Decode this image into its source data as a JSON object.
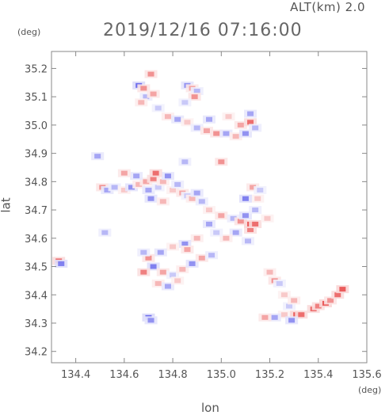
{
  "header": {
    "alt_label": "ALT(km) 2.0",
    "time_label": "2019/12/16 07:16:00",
    "y_unit": "(deg)",
    "x_unit": "(deg)"
  },
  "chart_data": {
    "type": "heatmap",
    "xlabel": "lon",
    "ylabel": "lat",
    "xlim": [
      134.3,
      135.6
    ],
    "ylim": [
      34.16,
      35.26
    ],
    "x_ticks": [
      134.4,
      134.6,
      134.8,
      135.0,
      135.2,
      135.4,
      135.6
    ],
    "y_ticks": [
      34.2,
      34.3,
      34.4,
      34.5,
      34.6,
      34.7,
      34.8,
      34.9,
      35.0,
      35.1,
      35.2
    ],
    "x_tick_labels": [
      "134.4",
      "134.6",
      "134.8",
      "135.0",
      "135.2",
      "135.4",
      "135.6"
    ],
    "y_tick_labels": [
      "34.2",
      "34.3",
      "34.4",
      "34.5",
      "34.6",
      "34.7",
      "34.8",
      "34.9",
      "35.0",
      "35.1",
      "35.2"
    ],
    "grid": false,
    "colors": {
      "positive": "#e84a4a",
      "negative": "#4a4ae8",
      "neutral": "#ffffff"
    },
    "cells": [
      {
        "lon": 134.33,
        "lat": 34.52,
        "v": 0.8
      },
      {
        "lon": 134.34,
        "lat": 34.51,
        "v": -0.7
      },
      {
        "lon": 134.51,
        "lat": 34.78,
        "v": 0.6
      },
      {
        "lon": 134.53,
        "lat": 34.77,
        "v": -0.5
      },
      {
        "lon": 134.56,
        "lat": 34.78,
        "v": -0.4
      },
      {
        "lon": 134.6,
        "lat": 34.77,
        "v": 0.3
      },
      {
        "lon": 134.63,
        "lat": 34.78,
        "v": -0.6
      },
      {
        "lon": 134.66,
        "lat": 34.79,
        "v": 0.4
      },
      {
        "lon": 134.69,
        "lat": 34.8,
        "v": 0.5
      },
      {
        "lon": 134.7,
        "lat": 34.77,
        "v": -0.5
      },
      {
        "lon": 134.72,
        "lat": 34.81,
        "v": 0.7
      },
      {
        "lon": 134.74,
        "lat": 34.78,
        "v": -0.3
      },
      {
        "lon": 134.76,
        "lat": 34.8,
        "v": 0.4
      },
      {
        "lon": 134.78,
        "lat": 34.82,
        "v": -0.6
      },
      {
        "lon": 134.8,
        "lat": 34.77,
        "v": 0.3
      },
      {
        "lon": 134.82,
        "lat": 34.79,
        "v": -0.4
      },
      {
        "lon": 134.84,
        "lat": 34.76,
        "v": 0.5
      },
      {
        "lon": 134.73,
        "lat": 34.83,
        "v": 0.8
      },
      {
        "lon": 134.71,
        "lat": 34.74,
        "v": -0.6
      },
      {
        "lon": 134.76,
        "lat": 34.73,
        "v": 0.4
      },
      {
        "lon": 134.86,
        "lat": 34.75,
        "v": -0.3
      },
      {
        "lon": 134.88,
        "lat": 34.74,
        "v": 0.4
      },
      {
        "lon": 134.9,
        "lat": 34.76,
        "v": -0.5
      },
      {
        "lon": 134.65,
        "lat": 34.82,
        "v": -0.5
      },
      {
        "lon": 134.92,
        "lat": 34.73,
        "v": -0.4
      },
      {
        "lon": 134.95,
        "lat": 34.7,
        "v": 0.3
      },
      {
        "lon": 135.0,
        "lat": 34.68,
        "v": 0.5
      },
      {
        "lon": 135.05,
        "lat": 34.67,
        "v": -0.4
      },
      {
        "lon": 135.08,
        "lat": 34.66,
        "v": 0.6
      },
      {
        "lon": 135.1,
        "lat": 34.68,
        "v": -0.6
      },
      {
        "lon": 135.06,
        "lat": 34.62,
        "v": -0.5
      },
      {
        "lon": 135.02,
        "lat": 34.6,
        "v": 0.4
      },
      {
        "lon": 134.98,
        "lat": 34.62,
        "v": -0.3
      },
      {
        "lon": 135.12,
        "lat": 34.63,
        "v": 0.7
      },
      {
        "lon": 135.14,
        "lat": 34.7,
        "v": -0.4
      },
      {
        "lon": 135.15,
        "lat": 34.74,
        "v": 0.3
      },
      {
        "lon": 135.13,
        "lat": 34.78,
        "v": 0.5
      },
      {
        "lon": 135.16,
        "lat": 34.77,
        "v": -0.3
      },
      {
        "lon": 135.1,
        "lat": 34.74,
        "v": -0.7
      },
      {
        "lon": 135.12,
        "lat": 34.65,
        "v": 0.9
      },
      {
        "lon": 135.14,
        "lat": 34.65,
        "v": 0.8
      },
      {
        "lon": 134.95,
        "lat": 34.65,
        "v": -0.5
      },
      {
        "lon": 134.9,
        "lat": 34.6,
        "v": 0.4
      },
      {
        "lon": 134.85,
        "lat": 34.58,
        "v": -0.6
      },
      {
        "lon": 134.8,
        "lat": 34.57,
        "v": 0.3
      },
      {
        "lon": 134.75,
        "lat": 34.55,
        "v": -0.5
      },
      {
        "lon": 134.7,
        "lat": 34.53,
        "v": 0.6
      },
      {
        "lon": 134.68,
        "lat": 34.55,
        "v": -0.4
      },
      {
        "lon": 134.72,
        "lat": 34.5,
        "v": -0.7
      },
      {
        "lon": 134.76,
        "lat": 34.48,
        "v": 0.5
      },
      {
        "lon": 134.8,
        "lat": 34.47,
        "v": -0.3
      },
      {
        "lon": 134.84,
        "lat": 34.49,
        "v": 0.4
      },
      {
        "lon": 134.88,
        "lat": 34.51,
        "v": -0.6
      },
      {
        "lon": 134.92,
        "lat": 34.53,
        "v": 0.5
      },
      {
        "lon": 134.96,
        "lat": 34.54,
        "v": -0.4
      },
      {
        "lon": 134.74,
        "lat": 34.44,
        "v": 0.4
      },
      {
        "lon": 134.78,
        "lat": 34.43,
        "v": -0.5
      },
      {
        "lon": 134.82,
        "lat": 34.45,
        "v": 0.3
      },
      {
        "lon": 134.68,
        "lat": 34.48,
        "v": 0.7
      },
      {
        "lon": 134.86,
        "lat": 34.56,
        "v": 0.5
      },
      {
        "lon": 134.66,
        "lat": 35.14,
        "v": -0.8
      },
      {
        "lon": 134.68,
        "lat": 35.13,
        "v": 0.6
      },
      {
        "lon": 134.69,
        "lat": 35.1,
        "v": -0.4
      },
      {
        "lon": 134.72,
        "lat": 35.11,
        "v": 0.5
      },
      {
        "lon": 134.67,
        "lat": 35.08,
        "v": 0.4
      },
      {
        "lon": 134.71,
        "lat": 35.18,
        "v": 0.6
      },
      {
        "lon": 134.86,
        "lat": 35.14,
        "v": -0.6
      },
      {
        "lon": 134.88,
        "lat": 35.13,
        "v": 0.5
      },
      {
        "lon": 134.9,
        "lat": 35.12,
        "v": -0.4
      },
      {
        "lon": 134.89,
        "lat": 35.1,
        "v": 0.6
      },
      {
        "lon": 134.85,
        "lat": 35.08,
        "v": -0.3
      },
      {
        "lon": 134.78,
        "lat": 35.03,
        "v": 0.4
      },
      {
        "lon": 134.82,
        "lat": 35.02,
        "v": -0.5
      },
      {
        "lon": 134.86,
        "lat": 35.01,
        "v": 0.3
      },
      {
        "lon": 134.9,
        "lat": 34.99,
        "v": -0.4
      },
      {
        "lon": 134.94,
        "lat": 34.98,
        "v": 0.5
      },
      {
        "lon": 134.98,
        "lat": 34.97,
        "v": 0.6
      },
      {
        "lon": 135.02,
        "lat": 34.97,
        "v": -0.5
      },
      {
        "lon": 135.06,
        "lat": 34.96,
        "v": 0.4
      },
      {
        "lon": 135.1,
        "lat": 34.97,
        "v": -0.6
      },
      {
        "lon": 135.08,
        "lat": 35.0,
        "v": 0.5
      },
      {
        "lon": 135.12,
        "lat": 35.01,
        "v": 0.8
      },
      {
        "lon": 135.14,
        "lat": 34.99,
        "v": -0.4
      },
      {
        "lon": 135.12,
        "lat": 35.04,
        "v": -0.5
      },
      {
        "lon": 135.03,
        "lat": 35.03,
        "v": 0.3
      },
      {
        "lon": 134.74,
        "lat": 35.06,
        "v": -0.3
      },
      {
        "lon": 134.95,
        "lat": 35.02,
        "v": -0.5
      },
      {
        "lon": 134.6,
        "lat": 34.83,
        "v": 0.5
      },
      {
        "lon": 135.0,
        "lat": 34.87,
        "v": 0.6
      },
      {
        "lon": 134.85,
        "lat": 34.87,
        "v": -0.4
      },
      {
        "lon": 135.22,
        "lat": 34.45,
        "v": 0.6
      },
      {
        "lon": 135.24,
        "lat": 34.44,
        "v": -0.3
      },
      {
        "lon": 135.26,
        "lat": 34.4,
        "v": 0.3
      },
      {
        "lon": 135.28,
        "lat": 34.36,
        "v": -0.3
      },
      {
        "lon": 135.3,
        "lat": 34.38,
        "v": 0.4
      },
      {
        "lon": 135.26,
        "lat": 34.33,
        "v": 0.3
      },
      {
        "lon": 135.22,
        "lat": 34.32,
        "v": -0.5
      },
      {
        "lon": 135.18,
        "lat": 34.32,
        "v": 0.5
      },
      {
        "lon": 135.31,
        "lat": 34.33,
        "v": 0.9
      },
      {
        "lon": 135.33,
        "lat": 34.33,
        "v": 0.8
      },
      {
        "lon": 135.29,
        "lat": 34.31,
        "v": -0.6
      },
      {
        "lon": 135.38,
        "lat": 34.35,
        "v": 0.8
      },
      {
        "lon": 135.4,
        "lat": 34.36,
        "v": 0.7
      },
      {
        "lon": 135.43,
        "lat": 34.37,
        "v": 0.9
      },
      {
        "lon": 135.45,
        "lat": 34.38,
        "v": 0.6
      },
      {
        "lon": 135.48,
        "lat": 34.4,
        "v": 0.8
      },
      {
        "lon": 135.5,
        "lat": 34.42,
        "v": 0.9
      },
      {
        "lon": 134.7,
        "lat": 34.32,
        "v": -0.8
      },
      {
        "lon": 134.71,
        "lat": 34.31,
        "v": -0.6
      },
      {
        "lon": 134.52,
        "lat": 34.62,
        "v": -0.4
      },
      {
        "lon": 134.49,
        "lat": 34.89,
        "v": -0.5
      },
      {
        "lon": 135.2,
        "lat": 34.48,
        "v": 0.4
      },
      {
        "lon": 135.19,
        "lat": 34.67,
        "v": 0.3
      },
      {
        "lon": 135.11,
        "lat": 34.59,
        "v": -0.4
      }
    ]
  }
}
